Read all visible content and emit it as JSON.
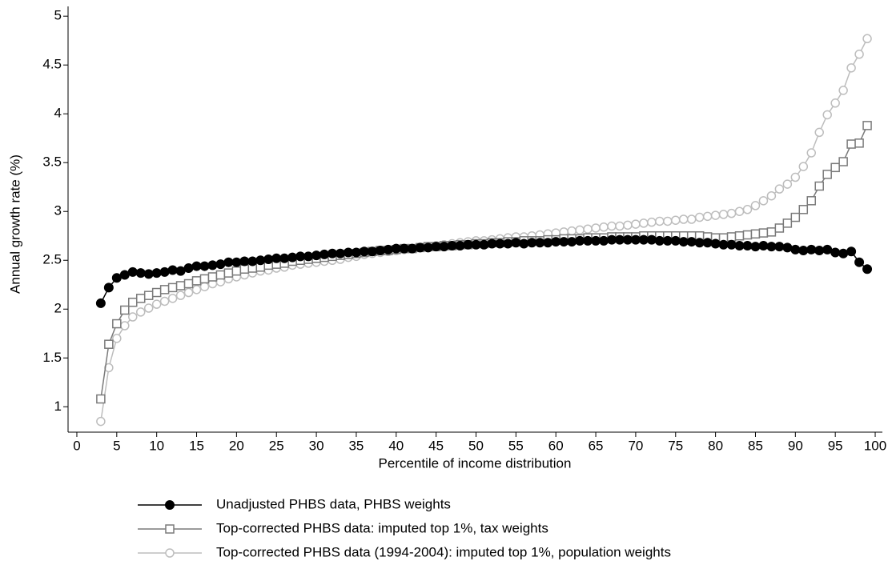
{
  "chart_data": {
    "type": "line",
    "x_label": "Percentile of income distribution",
    "y_label": "Annual growth rate (%)",
    "xlim": [
      -1.1,
      100.9
    ],
    "ylim": [
      0.74,
      5.1
    ],
    "xticks": [
      0,
      5,
      10,
      15,
      20,
      25,
      30,
      35,
      40,
      45,
      50,
      55,
      60,
      65,
      70,
      75,
      80,
      85,
      90,
      95,
      100
    ],
    "yticks": [
      1,
      1.5,
      2,
      2.5,
      3,
      3.5,
      4,
      4.5,
      5
    ],
    "legend": "bottom",
    "x": [
      3,
      4,
      5,
      6,
      7,
      8,
      9,
      10,
      11,
      12,
      13,
      14,
      15,
      16,
      17,
      18,
      19,
      20,
      21,
      22,
      23,
      24,
      25,
      26,
      27,
      28,
      29,
      30,
      31,
      32,
      33,
      34,
      35,
      36,
      37,
      38,
      39,
      40,
      41,
      42,
      43,
      44,
      45,
      46,
      47,
      48,
      49,
      50,
      51,
      52,
      53,
      54,
      55,
      56,
      57,
      58,
      59,
      60,
      61,
      62,
      63,
      64,
      65,
      66,
      67,
      68,
      69,
      70,
      71,
      72,
      73,
      74,
      75,
      76,
      77,
      78,
      79,
      80,
      81,
      82,
      83,
      84,
      85,
      86,
      87,
      88,
      89,
      90,
      91,
      92,
      93,
      94,
      95,
      96,
      97,
      98,
      99
    ],
    "series": [
      {
        "name": "Unadjusted PHBS data, PHBS weights",
        "color": "#000000",
        "marker": "filled-circle",
        "values": [
          2.06,
          2.22,
          2.32,
          2.35,
          2.38,
          2.37,
          2.36,
          2.37,
          2.38,
          2.4,
          2.39,
          2.42,
          2.44,
          2.44,
          2.45,
          2.46,
          2.48,
          2.48,
          2.49,
          2.49,
          2.5,
          2.51,
          2.52,
          2.52,
          2.53,
          2.54,
          2.54,
          2.55,
          2.56,
          2.57,
          2.57,
          2.58,
          2.58,
          2.59,
          2.59,
          2.6,
          2.61,
          2.62,
          2.62,
          2.62,
          2.63,
          2.63,
          2.64,
          2.64,
          2.65,
          2.65,
          2.66,
          2.66,
          2.66,
          2.67,
          2.67,
          2.67,
          2.68,
          2.67,
          2.68,
          2.68,
          2.68,
          2.69,
          2.69,
          2.69,
          2.7,
          2.7,
          2.7,
          2.7,
          2.71,
          2.71,
          2.71,
          2.71,
          2.71,
          2.71,
          2.7,
          2.7,
          2.7,
          2.69,
          2.69,
          2.68,
          2.68,
          2.67,
          2.66,
          2.66,
          2.65,
          2.65,
          2.64,
          2.65,
          2.64,
          2.64,
          2.63,
          2.61,
          2.6,
          2.61,
          2.6,
          2.61,
          2.58,
          2.57,
          2.59,
          2.48,
          2.41
        ]
      },
      {
        "name": "Top-corrected PHBS data: imputed top 1%, tax weights",
        "color": "#7a7a7a",
        "marker": "square",
        "values": [
          1.08,
          1.64,
          1.85,
          1.99,
          2.07,
          2.11,
          2.14,
          2.17,
          2.2,
          2.22,
          2.24,
          2.26,
          2.29,
          2.31,
          2.33,
          2.35,
          2.37,
          2.39,
          2.41,
          2.42,
          2.43,
          2.45,
          2.46,
          2.47,
          2.49,
          2.5,
          2.51,
          2.52,
          2.53,
          2.54,
          2.55,
          2.56,
          2.57,
          2.58,
          2.59,
          2.6,
          2.6,
          2.61,
          2.62,
          2.62,
          2.63,
          2.64,
          2.64,
          2.65,
          2.65,
          2.66,
          2.66,
          2.67,
          2.67,
          2.68,
          2.68,
          2.69,
          2.69,
          2.7,
          2.7,
          2.7,
          2.71,
          2.71,
          2.72,
          2.72,
          2.72,
          2.73,
          2.73,
          2.73,
          2.74,
          2.74,
          2.74,
          2.74,
          2.75,
          2.75,
          2.75,
          2.75,
          2.75,
          2.75,
          2.75,
          2.75,
          2.74,
          2.73,
          2.73,
          2.74,
          2.75,
          2.76,
          2.77,
          2.78,
          2.79,
          2.83,
          2.88,
          2.94,
          3.02,
          3.11,
          3.26,
          3.38,
          3.45,
          3.51,
          3.69,
          3.7,
          3.88
        ]
      },
      {
        "name": "Top-corrected PHBS data (1994-2004): imputed top 1%, population weights",
        "color": "#bdbdbd",
        "marker": "circle",
        "values": [
          0.85,
          1.4,
          1.7,
          1.83,
          1.92,
          1.97,
          2.01,
          2.05,
          2.08,
          2.11,
          2.14,
          2.17,
          2.2,
          2.23,
          2.26,
          2.28,
          2.31,
          2.33,
          2.35,
          2.37,
          2.39,
          2.4,
          2.42,
          2.43,
          2.45,
          2.46,
          2.47,
          2.48,
          2.49,
          2.5,
          2.51,
          2.53,
          2.54,
          2.56,
          2.57,
          2.58,
          2.59,
          2.6,
          2.61,
          2.62,
          2.63,
          2.64,
          2.65,
          2.66,
          2.67,
          2.68,
          2.69,
          2.7,
          2.7,
          2.71,
          2.72,
          2.73,
          2.74,
          2.74,
          2.75,
          2.76,
          2.77,
          2.78,
          2.79,
          2.8,
          2.81,
          2.82,
          2.83,
          2.84,
          2.85,
          2.85,
          2.86,
          2.87,
          2.88,
          2.89,
          2.9,
          2.9,
          2.91,
          2.92,
          2.92,
          2.94,
          2.95,
          2.96,
          2.97,
          2.98,
          3.0,
          3.02,
          3.06,
          3.11,
          3.16,
          3.23,
          3.28,
          3.35,
          3.46,
          3.6,
          3.81,
          3.99,
          4.11,
          4.24,
          4.47,
          4.61,
          4.77
        ]
      }
    ]
  }
}
